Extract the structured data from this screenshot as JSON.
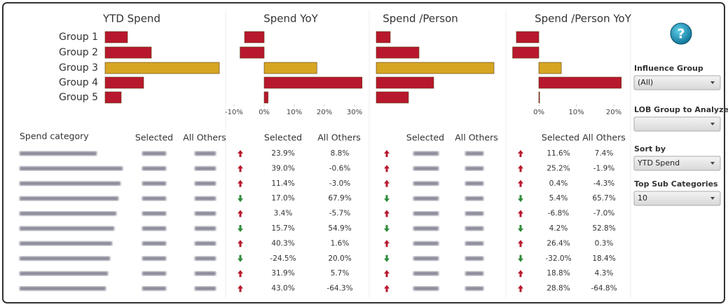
{
  "chart_data": [
    {
      "type": "hbar",
      "title": "YTD Spend",
      "categories": [
        "Group 1",
        "Group 2",
        "Group 3",
        "Group 4",
        "Group 5"
      ],
      "values": [
        32,
        66,
        163,
        55,
        23
      ],
      "colors": [
        "#b8182e",
        "#b8182e",
        "#d6a623",
        "#b8182e",
        "#b8182e"
      ],
      "xlim": [
        0,
        165
      ]
    },
    {
      "type": "hbar",
      "title": "Spend YoY",
      "values": [
        -6.5,
        -8,
        17.5,
        32.5,
        1.3
      ],
      "colors": [
        "#b8182e",
        "#b8182e",
        "#d6a623",
        "#b8182e",
        "#b8182e"
      ],
      "xlim": [
        -12,
        33
      ],
      "xticks": [
        {
          "value": -10,
          "label": "-10%"
        },
        {
          "value": 0,
          "label": "0%"
        },
        {
          "value": 10,
          "label": "10%"
        },
        {
          "value": 20,
          "label": "20%"
        },
        {
          "value": 30,
          "label": "30%"
        }
      ]
    },
    {
      "type": "hbar",
      "title": "Spend /Person",
      "values": [
        20,
        61,
        168,
        82,
        46
      ],
      "colors": [
        "#b8182e",
        "#b8182e",
        "#d6a623",
        "#b8182e",
        "#b8182e"
      ],
      "xlim": [
        0,
        170
      ]
    },
    {
      "type": "hbar",
      "title": "Spend /Person YoY",
      "values": [
        -6,
        -7,
        6,
        22,
        0.2
      ],
      "colors": [
        "#b8182e",
        "#b8182e",
        "#d6a623",
        "#b8182e",
        "#b8182e"
      ],
      "xlim": [
        -7.5,
        22.5
      ],
      "xticks": [
        {
          "value": 0,
          "label": "0%"
        },
        {
          "value": 10,
          "label": "10%"
        },
        {
          "value": 20,
          "label": "20%"
        }
      ]
    }
  ],
  "table": {
    "header": [
      "Spend category",
      "Selected",
      "All Others",
      "Selected",
      "All Others",
      "Selected",
      "All Others",
      "Selected",
      "All Others"
    ],
    "rows": [
      {
        "yoy_trend": "up",
        "yoy": [
          "23.9%",
          "8.8%"
        ],
        "person_yoy_trend": "up",
        "person_yoy": [
          "11.6%",
          "7.4%"
        ]
      },
      {
        "yoy_trend": "up",
        "yoy": [
          "39.0%",
          "-0.6%"
        ],
        "person_yoy_trend": "up",
        "person_yoy": [
          "25.2%",
          "-1.9%"
        ]
      },
      {
        "yoy_trend": "up",
        "yoy": [
          "11.4%",
          "-3.0%"
        ],
        "person_yoy_trend": "up",
        "person_yoy": [
          "0.4%",
          "-4.3%"
        ]
      },
      {
        "yoy_trend": "down",
        "yoy": [
          "17.0%",
          "67.9%"
        ],
        "person_yoy_trend": "down",
        "person_yoy": [
          "5.4%",
          "65.7%"
        ]
      },
      {
        "yoy_trend": "up",
        "yoy": [
          "3.4%",
          "-5.7%"
        ],
        "person_yoy_trend": "up",
        "person_yoy": [
          "-6.8%",
          "-7.0%"
        ]
      },
      {
        "yoy_trend": "down",
        "yoy": [
          "15.7%",
          "54.9%"
        ],
        "person_yoy_trend": "down",
        "person_yoy": [
          "4.2%",
          "52.8%"
        ]
      },
      {
        "yoy_trend": "up",
        "yoy": [
          "40.3%",
          "1.6%"
        ],
        "person_yoy_trend": "up",
        "person_yoy": [
          "26.4%",
          "0.3%"
        ]
      },
      {
        "yoy_trend": "down",
        "yoy": [
          "-24.5%",
          "20.0%"
        ],
        "person_yoy_trend": "down",
        "person_yoy": [
          "-32.0%",
          "18.4%"
        ]
      },
      {
        "yoy_trend": "up",
        "yoy": [
          "31.9%",
          "5.7%"
        ],
        "person_yoy_trend": "up",
        "person_yoy": [
          "18.8%",
          "4.3%"
        ]
      },
      {
        "yoy_trend": "up",
        "yoy": [
          "43.0%",
          "-64.3%"
        ],
        "person_yoy_trend": "up",
        "person_yoy": [
          "28.8%",
          "-64.8%"
        ]
      }
    ]
  },
  "controls": [
    {
      "label": "Influence Group",
      "value": "(All)"
    },
    {
      "label": "LOB Group to Analyze",
      "value": ""
    },
    {
      "label": "Sort by",
      "value": "YTD Spend"
    },
    {
      "label": "Top Sub Categories",
      "value": "10"
    }
  ],
  "help_icon": "?"
}
